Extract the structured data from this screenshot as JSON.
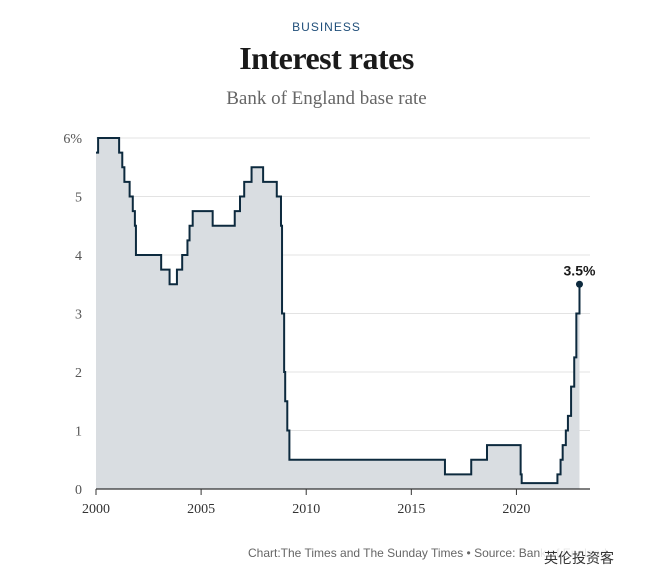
{
  "header": {
    "kicker": "BUSINESS",
    "title": "Interest rates",
    "subtitle": "Bank of England base rate"
  },
  "footer": {
    "credit": "Chart:The Times and The Sunday Times • Source: Bank of England"
  },
  "watermark": "英伦投资客",
  "colors": {
    "line": "#0d2a3e",
    "fill": "#d9dde1",
    "grid": "#e3e3e3",
    "axis": "#333333"
  },
  "chart_data": {
    "type": "area",
    "title": "Interest rates",
    "subtitle": "Bank of England base rate",
    "xlabel": "",
    "ylabel": "",
    "xlim": [
      2000,
      2023.5
    ],
    "ylim": [
      0,
      6
    ],
    "x_ticks": [
      2000,
      2005,
      2010,
      2015,
      2020
    ],
    "x_tick_labels": [
      "2000",
      "2005",
      "2010",
      "2015",
      "2020"
    ],
    "y_ticks": [
      0,
      1,
      2,
      3,
      4,
      5,
      6
    ],
    "y_tick_labels": [
      "0",
      "1",
      "2",
      "3",
      "4",
      "5",
      "6%"
    ],
    "grid": true,
    "step": true,
    "series": [
      {
        "name": "Bank of England base rate",
        "points": [
          [
            2000.0,
            5.75
          ],
          [
            2000.1,
            6.0
          ],
          [
            2001.1,
            5.75
          ],
          [
            2001.25,
            5.5
          ],
          [
            2001.35,
            5.25
          ],
          [
            2001.6,
            5.0
          ],
          [
            2001.75,
            4.75
          ],
          [
            2001.85,
            4.5
          ],
          [
            2001.9,
            4.0
          ],
          [
            2003.1,
            3.75
          ],
          [
            2003.5,
            3.5
          ],
          [
            2003.85,
            3.75
          ],
          [
            2004.1,
            4.0
          ],
          [
            2004.35,
            4.25
          ],
          [
            2004.45,
            4.5
          ],
          [
            2004.6,
            4.75
          ],
          [
            2005.55,
            4.5
          ],
          [
            2006.6,
            4.75
          ],
          [
            2006.85,
            5.0
          ],
          [
            2007.05,
            5.25
          ],
          [
            2007.4,
            5.5
          ],
          [
            2007.95,
            5.25
          ],
          [
            2008.6,
            5.0
          ],
          [
            2008.8,
            4.5
          ],
          [
            2008.85,
            3.0
          ],
          [
            2008.95,
            2.0
          ],
          [
            2009.0,
            1.5
          ],
          [
            2009.1,
            1.0
          ],
          [
            2009.2,
            0.5
          ],
          [
            2016.6,
            0.25
          ],
          [
            2017.85,
            0.5
          ],
          [
            2018.6,
            0.75
          ],
          [
            2020.2,
            0.25
          ],
          [
            2020.25,
            0.1
          ],
          [
            2021.95,
            0.25
          ],
          [
            2022.1,
            0.5
          ],
          [
            2022.2,
            0.75
          ],
          [
            2022.35,
            1.0
          ],
          [
            2022.45,
            1.25
          ],
          [
            2022.6,
            1.75
          ],
          [
            2022.75,
            2.25
          ],
          [
            2022.85,
            3.0
          ],
          [
            2023.0,
            3.5
          ]
        ]
      }
    ],
    "end_x": 2023.0,
    "annotations": [
      {
        "label": "3.5%",
        "x": 2023.0,
        "y": 3.5
      }
    ]
  }
}
